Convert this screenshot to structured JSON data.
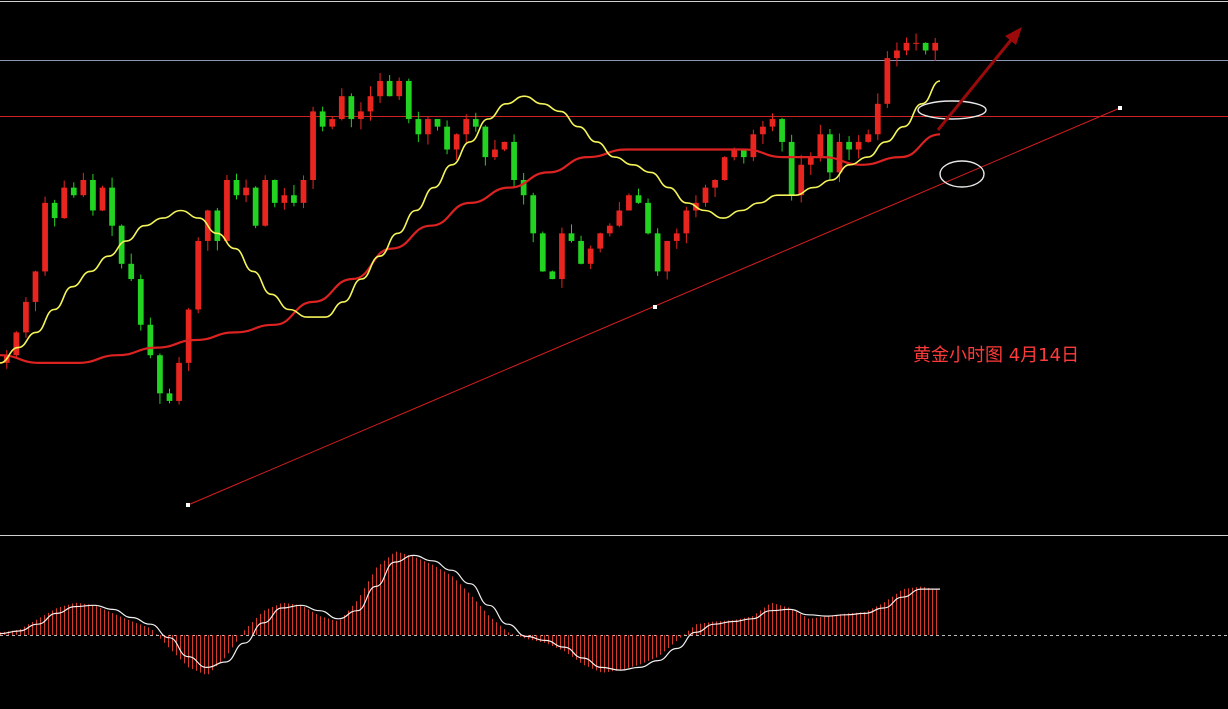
{
  "colors": {
    "background": "#000000",
    "up": "#e8251f",
    "down": "#22d322",
    "ma_fast": "#f5f55a",
    "ma_slow": "#dd2222",
    "trendline": "#d61e1e",
    "level_line": "#cc2222",
    "resistance_line": "#8a98b4",
    "arrow": "#9a0a0a",
    "oscillator_line": "#f0f0f0",
    "oscillator_bars": "#d63a2a",
    "highlight_circle": "#e8e8e8",
    "annotation": "#ff3a3a"
  },
  "annotation": {
    "text": "黄金小时图 4月14日"
  },
  "chart_data": [
    {
      "type": "candlestick",
      "title": "",
      "ylim": [
        1995,
        2058
      ],
      "x_count": 120,
      "series": [
        {
          "kind": "close",
          "values": [
            2014,
            2017,
            2021,
            2025,
            2034,
            2032,
            2036,
            2035,
            2037,
            2033,
            2036,
            2031,
            2026,
            2024,
            2018,
            2014,
            2009,
            2008,
            2013,
            2020,
            2029,
            2033,
            2029,
            2037,
            2035,
            2036,
            2031,
            2037,
            2034,
            2035,
            2034,
            2037,
            2046,
            2044,
            2045,
            2048,
            2045,
            2046,
            2048,
            2050,
            2048,
            2050,
            2045,
            2043,
            2045,
            2044,
            2041,
            2043,
            2045,
            2044,
            2040,
            2041,
            2042,
            2037,
            2035,
            2030,
            2025,
            2024,
            2030,
            2029,
            2026,
            2028,
            2030,
            2031,
            2033,
            2035,
            2034,
            2030,
            2025,
            2029,
            2030,
            2033,
            2034,
            2036,
            2037,
            2040,
            2041,
            2040,
            2043,
            2044,
            2045,
            2042,
            2035,
            2039,
            2040,
            2043,
            2038,
            2042,
            2041,
            2042,
            2043,
            2047,
            2053,
            2054,
            2055,
            2055,
            2054,
            2055
          ]
        },
        {
          "kind": "ma_fast",
          "name": "",
          "values": [
            2013,
            2015,
            2017,
            2020,
            2023,
            2025,
            2027,
            2029,
            2031,
            2032,
            2033,
            2032,
            2030,
            2028,
            2025,
            2022,
            2020,
            2019,
            2019,
            2021,
            2024,
            2027,
            2030,
            2033,
            2036,
            2039,
            2042,
            2045,
            2047,
            2048,
            2047,
            2046,
            2044,
            2042,
            2040,
            2039,
            2038,
            2036,
            2034,
            2033,
            2032,
            2033,
            2034,
            2035,
            2035,
            2036,
            2037,
            2039,
            2040,
            2042,
            2044,
            2047,
            2050
          ]
        },
        {
          "kind": "ma_slow",
          "name": "",
          "values": [
            2014,
            2013,
            2013,
            2014,
            2015,
            2016,
            2017,
            2018,
            2021,
            2024,
            2028,
            2031,
            2034,
            2036,
            2038,
            2040,
            2041,
            2041,
            2041,
            2041,
            2040,
            2040,
            2039,
            2040,
            2043
          ]
        }
      ],
      "levels": [
        2052,
        2055
      ],
      "trendline_from": [
        2005,
        2050
      ]
    },
    {
      "type": "bar",
      "title": "",
      "series": [
        {
          "kind": "histogram",
          "values": [
            0.2,
            0.4,
            1.2,
            2.0,
            2.4,
            2.2,
            1.6,
            1.0,
            0.5,
            -1.0,
            -2.4,
            -3.0,
            -1.6,
            0.4,
            1.8,
            2.4,
            2.2,
            1.4,
            1.0,
            2.6,
            5.0,
            6.2,
            5.8,
            5.2,
            4.4,
            3.0,
            1.4,
            0.2,
            -0.3,
            -0.6,
            -1.2,
            -2.2,
            -2.8,
            -2.6,
            -2.2,
            -1.6,
            -0.4,
            0.8,
            1.0,
            1.1,
            1.4,
            2.4,
            2.0,
            1.2,
            1.4,
            1.6,
            1.7,
            2.4,
            3.4,
            3.6,
            3.3
          ]
        },
        {
          "kind": "signal",
          "values": [
            0.1,
            0.3,
            0.8,
            1.6,
            2.1,
            2.2,
            1.9,
            1.3,
            0.8,
            -0.2,
            -1.6,
            -2.4,
            -2.0,
            -0.6,
            0.9,
            2.0,
            2.2,
            1.8,
            1.2,
            1.8,
            3.6,
            5.4,
            5.9,
            5.5,
            4.8,
            3.8,
            2.2,
            0.8,
            -0.1,
            -0.4,
            -0.9,
            -1.7,
            -2.4,
            -2.6,
            -2.4,
            -1.9,
            -1.0,
            0.2,
            0.8,
            1.0,
            1.2,
            1.8,
            1.9,
            1.5,
            1.4,
            1.5,
            1.6,
            2.0,
            2.8,
            3.4,
            3.4
          ]
        }
      ]
    }
  ]
}
